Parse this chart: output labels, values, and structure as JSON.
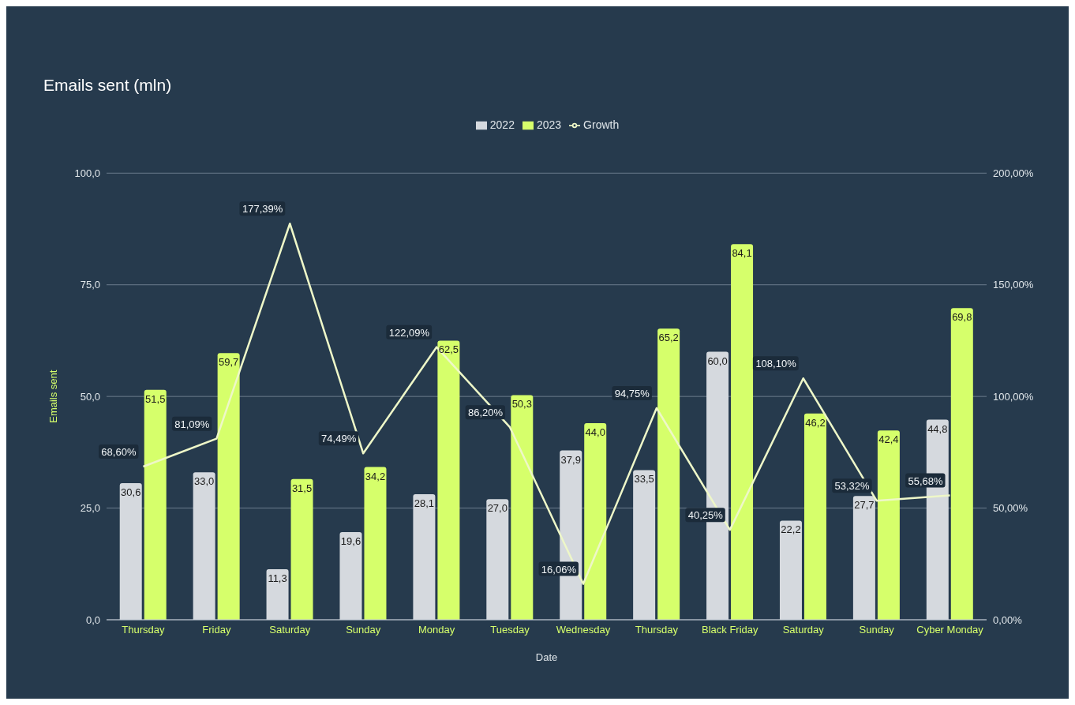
{
  "chart_data": {
    "type": "bar",
    "title": "Emails sent (mln)",
    "xlabel": "Date",
    "ylabel": "Emails sent",
    "categories": [
      "Thursday",
      "Friday",
      "Saturday",
      "Sunday",
      "Monday",
      "Tuesday",
      "Wednesday",
      "Thursday",
      "Black Friday",
      "Saturday",
      "Sunday",
      "Cyber Monday"
    ],
    "series": [
      {
        "name": "2022",
        "type": "bar",
        "color": "#d5d9de",
        "values": [
          30.6,
          33.0,
          11.3,
          19.6,
          28.1,
          27.0,
          37.9,
          33.5,
          60.0,
          22.2,
          27.7,
          44.8
        ],
        "value_labels": [
          "30,6",
          "33,0",
          "11,3",
          "19,6",
          "28,1",
          "27,0",
          "37,9",
          "33,5",
          "60,0",
          "22,2",
          "27,7",
          "44,8"
        ]
      },
      {
        "name": "2023",
        "type": "bar",
        "color": "#d6ff6b",
        "values": [
          51.5,
          59.7,
          31.5,
          34.2,
          62.5,
          50.3,
          44.0,
          65.2,
          84.1,
          46.2,
          42.4,
          69.8
        ],
        "value_labels": [
          "51,5",
          "59,7",
          "31,5",
          "34,2",
          "62,5",
          "50,3",
          "44,0",
          "65,2",
          "84,1",
          "46,2",
          "42,4",
          "69,8"
        ]
      },
      {
        "name": "Growth",
        "type": "line",
        "axis": "y2",
        "color": "#eef7c8",
        "values": [
          68.6,
          81.09,
          177.39,
          74.49,
          122.09,
          86.2,
          16.06,
          94.75,
          40.25,
          108.1,
          53.32,
          55.68
        ],
        "value_labels": [
          "68,60%",
          "81,09%",
          "177,39%",
          "74,49%",
          "122,09%",
          "86,20%",
          "16,06%",
          "94,75%",
          "40,25%",
          "108,10%",
          "53,32%",
          "55,68%"
        ]
      }
    ],
    "ylim": [
      0,
      100
    ],
    "yticks": [
      {
        "value": 0,
        "label": "0,0"
      },
      {
        "value": 25,
        "label": "25,0"
      },
      {
        "value": 50,
        "label": "50,0"
      },
      {
        "value": 75,
        "label": "75,0"
      },
      {
        "value": 100,
        "label": "100,0"
      }
    ],
    "y2lim": [
      0,
      200
    ],
    "y2ticks": [
      {
        "value": 0,
        "label": "0,00%"
      },
      {
        "value": 50,
        "label": "50,00%"
      },
      {
        "value": 100,
        "label": "100,00%"
      },
      {
        "value": 150,
        "label": "150,00%"
      },
      {
        "value": 200,
        "label": "200,00%"
      }
    ],
    "grid": "y",
    "legend": "top"
  }
}
